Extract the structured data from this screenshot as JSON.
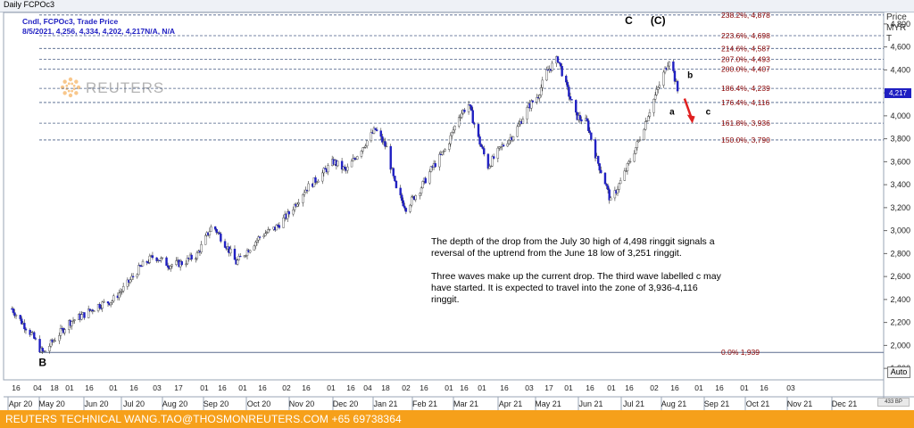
{
  "window": {
    "title": "Daily FCPOc3"
  },
  "legend": {
    "line1": "Cndl, FCPOc3, Trade Price",
    "line2": "8/5/2021, 4,256, 4,334, 4,202, 4,217N/A, N/A"
  },
  "watermark": {
    "brand": "REUTERS"
  },
  "price_axis": {
    "label_line1": "Price",
    "label_line2": "MYR",
    "label_line3": "T",
    "last_price": "4,217",
    "auto_label": "Auto"
  },
  "annotation": {
    "para1": "The depth of the drop from the July 30 high of 4,498 ringgit signals a reversal of the uptrend from the June 18 low of 3,251 ringgit.",
    "para2": "Three waves make up the current drop. The third wave labelled c may have started. It is expected to travel into the zone of 3,936-4,116 ringgit."
  },
  "footer": {
    "text": "REUTERS TECHNICAL  WANG.TAO@THOSMONREUTERS.COM  +65 69738364"
  },
  "scroll_badge": "433 BP",
  "colors": {
    "candle_down": "#1f1fc2",
    "candle_up": "#ffffff",
    "fib_line": "#4a5f86",
    "fib_label": "#8b0000",
    "arrow": "#e02020",
    "footer_bg": "#f6a01a"
  },
  "chart_data": {
    "type": "candlestick",
    "title": "Daily FCPOc3",
    "ylabel": "Price MYR",
    "ylim": [
      1700,
      4900
    ],
    "yticks": [
      1800,
      2000,
      2200,
      2400,
      2600,
      2800,
      3000,
      3200,
      3400,
      3600,
      3800,
      4000,
      4200,
      4400,
      4600,
      4800
    ],
    "ytick_labels": [
      "1,800",
      "2,000",
      "2,200",
      "2,400",
      "2,600",
      "2,800",
      "3,000",
      "3,200",
      "3,400",
      "3,600",
      "3,800",
      "4,000",
      "4,200",
      "4,400",
      "4,600",
      "4,800"
    ],
    "x_day_labels": [
      "16",
      "04",
      "18",
      "01",
      "16",
      "01",
      "16",
      "03",
      "17",
      "01",
      "16",
      "01",
      "16",
      "02",
      "16",
      "01",
      "16",
      "04",
      "18",
      "02",
      "16",
      "01",
      "16",
      "01",
      "16",
      "03",
      "17",
      "01",
      "16",
      "01",
      "16",
      "02",
      "16",
      "01",
      "16",
      "01",
      "16",
      "03"
    ],
    "x_month_labels": [
      "Apr 20",
      "May 20",
      "Jun 20",
      "Jul 20",
      "Aug 20",
      "Sep 20",
      "Oct 20",
      "Nov 20",
      "Dec 20",
      "Jan 21",
      "Feb 21",
      "Mar 21",
      "Apr 21",
      "May 21",
      "Jun 21",
      "Jul 21",
      "Aug 21",
      "Sep 21",
      "Oct 21",
      "Nov 21",
      "Dec 21"
    ],
    "series_points": [
      [
        "2020-04-14",
        2320
      ],
      [
        "2020-04-20",
        2220
      ],
      [
        "2020-04-28",
        2100
      ],
      [
        "2020-05-05",
        1950
      ],
      [
        "2020-05-07",
        1939
      ],
      [
        "2020-05-15",
        2060
      ],
      [
        "2020-05-25",
        2200
      ],
      [
        "2020-06-05",
        2270
      ],
      [
        "2020-06-15",
        2350
      ],
      [
        "2020-06-25",
        2390
      ],
      [
        "2020-07-05",
        2520
      ],
      [
        "2020-07-15",
        2680
      ],
      [
        "2020-07-25",
        2780
      ],
      [
        "2020-08-05",
        2700
      ],
      [
        "2020-08-15",
        2720
      ],
      [
        "2020-08-25",
        2790
      ],
      [
        "2020-09-05",
        3050
      ],
      [
        "2020-09-15",
        2870
      ],
      [
        "2020-09-22",
        2720
      ],
      [
        "2020-10-01",
        2840
      ],
      [
        "2020-10-10",
        2960
      ],
      [
        "2020-10-20",
        3020
      ],
      [
        "2020-10-30",
        3150
      ],
      [
        "2020-11-10",
        3350
      ],
      [
        "2020-11-20",
        3460
      ],
      [
        "2020-12-01",
        3600
      ],
      [
        "2020-12-10",
        3520
      ],
      [
        "2020-12-20",
        3700
      ],
      [
        "2020-12-31",
        3880
      ],
      [
        "2021-01-08",
        3720
      ],
      [
        "2021-01-15",
        3350
      ],
      [
        "2021-01-22",
        3200
      ],
      [
        "2021-02-01",
        3360
      ],
      [
        "2021-02-10",
        3550
      ],
      [
        "2021-02-20",
        3720
      ],
      [
        "2021-03-01",
        4000
      ],
      [
        "2021-03-08",
        4100
      ],
      [
        "2021-03-15",
        3800
      ],
      [
        "2021-03-22",
        3560
      ],
      [
        "2021-03-31",
        3720
      ],
      [
        "2021-04-10",
        3850
      ],
      [
        "2021-04-20",
        4080
      ],
      [
        "2021-04-27",
        4180
      ],
      [
        "2021-05-03",
        4380
      ],
      [
        "2021-05-11",
        4498
      ],
      [
        "2021-05-17",
        4260
      ],
      [
        "2021-05-24",
        4000
      ],
      [
        "2021-06-01",
        3940
      ],
      [
        "2021-06-08",
        3620
      ],
      [
        "2021-06-14",
        3420
      ],
      [
        "2021-06-18",
        3251
      ],
      [
        "2021-06-28",
        3500
      ],
      [
        "2021-07-08",
        3780
      ],
      [
        "2021-07-16",
        4050
      ],
      [
        "2021-07-24",
        4300
      ],
      [
        "2021-07-30",
        4498
      ],
      [
        "2021-08-02",
        4380
      ],
      [
        "2021-08-05",
        4217
      ]
    ],
    "fib_levels": [
      {
        "label": "238.2%",
        "value": "4,878",
        "y": 4878
      },
      {
        "label": "223.6%",
        "value": "4,698",
        "y": 4698
      },
      {
        "label": "214.6%",
        "value": "4,587",
        "y": 4587
      },
      {
        "label": "207.0%",
        "value": "4,493",
        "y": 4493
      },
      {
        "label": "200.0%",
        "value": "4,407",
        "y": 4407
      },
      {
        "label": "186.4%",
        "value": "4,239",
        "y": 4239
      },
      {
        "label": "176.4%",
        "value": "4,116",
        "y": 4116
      },
      {
        "label": "161.8%",
        "value": "3,936",
        "y": 3936
      },
      {
        "label": "150.0%",
        "value": "3,790",
        "y": 3790
      },
      {
        "label": "0.0%",
        "value": "1,939",
        "y": 1939
      }
    ],
    "wave_labels": [
      {
        "text": "B",
        "date": "2020-05-06",
        "y": 1820
      },
      {
        "text": "C",
        "date": "2021-07-01",
        "y": 4800
      },
      {
        "text": "(C)",
        "date": "2021-07-22",
        "y": 4800
      },
      {
        "text": "b",
        "date": "2021-08-14",
        "y": 4330
      },
      {
        "text": "a",
        "date": "2021-08-01",
        "y": 4010
      },
      {
        "text": "c",
        "date": "2021-08-27",
        "y": 4010
      }
    ],
    "grid": false,
    "legend_position": "top-left"
  }
}
